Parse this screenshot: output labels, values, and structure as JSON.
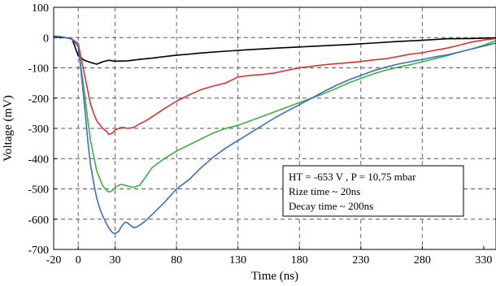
{
  "chart_data": {
    "type": "line",
    "title": "",
    "xlabel": "Time (ns)",
    "ylabel": "Voltage (mV)",
    "xlim": [
      -20,
      340
    ],
    "ylim": [
      -700,
      100
    ],
    "x_ticks": [
      -20,
      0,
      30,
      80,
      130,
      180,
      230,
      280,
      330
    ],
    "x_tick_labels": [
      "-20",
      "0",
      "30",
      "80",
      "130",
      "180",
      "230",
      "280",
      "330"
    ],
    "y_ticks": [
      100,
      0,
      -100,
      -200,
      -300,
      -400,
      -500,
      -600,
      -700
    ],
    "y_tick_labels": [
      "100",
      "0",
      "-100",
      "-200",
      "-300",
      "-400",
      "-500",
      "-600",
      "-700"
    ],
    "grid": true,
    "annotation": {
      "lines": [
        "HT =  -653 V  , P =  10,75 mbar",
        "Rize time ~ 20ns",
        "Decay time ~ 200ns"
      ]
    },
    "series": [
      {
        "color": "#000000",
        "x": [
          -20,
          -15,
          -10,
          -5,
          0,
          5,
          10,
          15,
          20,
          25,
          30,
          40,
          50,
          60,
          70,
          80,
          90,
          100,
          120,
          140,
          160,
          180,
          200,
          220,
          240,
          260,
          280,
          300,
          320,
          340
        ],
        "y": [
          5,
          0,
          0,
          -5,
          -60,
          -75,
          -82,
          -88,
          -80,
          -75,
          -78,
          -77,
          -72,
          -68,
          -63,
          -58,
          -55,
          -51,
          -45,
          -40,
          -35,
          -31,
          -27,
          -23,
          -18,
          -13,
          -9,
          -4,
          -3,
          -1
        ]
      },
      {
        "color": "#e03030",
        "x": [
          -20,
          -15,
          -10,
          -5,
          0,
          2,
          5,
          8,
          10,
          13,
          15,
          18,
          20,
          23,
          25,
          28,
          30,
          33,
          35,
          38,
          40,
          45,
          50,
          55,
          60,
          70,
          80,
          90,
          100,
          110,
          120,
          130,
          140,
          150,
          160,
          170,
          180,
          190,
          200,
          210,
          220,
          230,
          240,
          250,
          260,
          270,
          280,
          290,
          300,
          310,
          320,
          330,
          340
        ],
        "y": [
          5,
          3,
          0,
          -5,
          -20,
          -60,
          -120,
          -180,
          -220,
          -255,
          -275,
          -290,
          -300,
          -310,
          -320,
          -315,
          -305,
          -300,
          -297,
          -298,
          -300,
          -297,
          -285,
          -275,
          -262,
          -235,
          -210,
          -190,
          -172,
          -160,
          -150,
          -130,
          -125,
          -122,
          -117,
          -108,
          -100,
          -95,
          -90,
          -86,
          -83,
          -79,
          -74,
          -70,
          -63,
          -55,
          -50,
          -42,
          -35,
          -25,
          -15,
          -8,
          -3
        ]
      },
      {
        "color": "#3cb043",
        "x": [
          -20,
          -15,
          -10,
          -5,
          0,
          2,
          5,
          8,
          10,
          13,
          15,
          18,
          20,
          23,
          25,
          28,
          30,
          33,
          35,
          40,
          45,
          50,
          55,
          60,
          70,
          80,
          90,
          100,
          110,
          120,
          130,
          140,
          150,
          160,
          170,
          180,
          190,
          200,
          210,
          220,
          230,
          240,
          250,
          260,
          270,
          280,
          290,
          300,
          310,
          320,
          330,
          340
        ],
        "y": [
          5,
          3,
          0,
          -5,
          -30,
          -90,
          -180,
          -280,
          -340,
          -400,
          -440,
          -470,
          -490,
          -505,
          -510,
          -505,
          -495,
          -488,
          -485,
          -490,
          -495,
          -488,
          -460,
          -430,
          -400,
          -375,
          -355,
          -335,
          -315,
          -300,
          -290,
          -275,
          -260,
          -245,
          -230,
          -215,
          -200,
          -185,
          -168,
          -150,
          -135,
          -120,
          -108,
          -98,
          -90,
          -80,
          -70,
          -60,
          -48,
          -38,
          -25,
          -10
        ]
      },
      {
        "color": "#3a70c0",
        "x": [
          -20,
          -15,
          -10,
          -5,
          0,
          2,
          5,
          8,
          10,
          13,
          15,
          18,
          20,
          23,
          25,
          28,
          30,
          33,
          35,
          38,
          40,
          43,
          45,
          48,
          50,
          55,
          60,
          70,
          80,
          90,
          100,
          110,
          120,
          130,
          140,
          150,
          160,
          170,
          180,
          190,
          200,
          210,
          220,
          230,
          240,
          250,
          260,
          270,
          280,
          290,
          300,
          310,
          320,
          330,
          340
        ],
        "y": [
          5,
          3,
          0,
          -5,
          -30,
          -100,
          -220,
          -350,
          -420,
          -490,
          -530,
          -570,
          -590,
          -615,
          -630,
          -645,
          -648,
          -640,
          -625,
          -610,
          -612,
          -622,
          -628,
          -625,
          -620,
          -605,
          -585,
          -545,
          -500,
          -470,
          -430,
          -395,
          -365,
          -340,
          -315,
          -290,
          -265,
          -243,
          -222,
          -200,
          -178,
          -158,
          -140,
          -125,
          -110,
          -98,
          -88,
          -80,
          -72,
          -64,
          -57,
          -48,
          -38,
          -28,
          -18
        ]
      }
    ]
  }
}
